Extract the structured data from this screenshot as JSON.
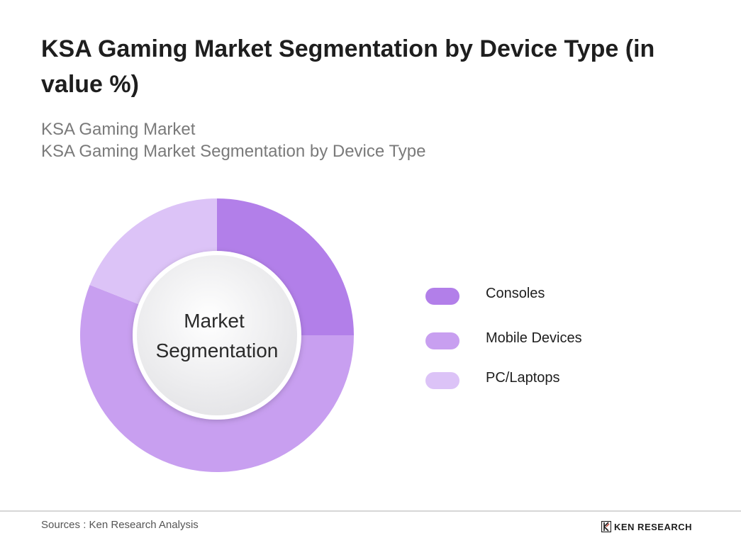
{
  "header": {
    "title": "KSA Gaming Market Segmentation by Device Type (in value %)",
    "subtitle_line1": "KSA Gaming Market",
    "subtitle_line2": "KSA Gaming Market Segmentation by Device Type"
  },
  "chart_data": {
    "type": "pie",
    "variant": "donut",
    "center_label_line1": "Market",
    "center_label_line2": "Segmentation",
    "categories": [
      "Consoles",
      "Mobile Devices",
      "PC/Laptops"
    ],
    "values": [
      25,
      56,
      19
    ],
    "unit": "%",
    "colors": [
      "#b27fe9",
      "#c89ff0",
      "#dcc3f7"
    ],
    "legend_position": "right"
  },
  "legend": {
    "items": [
      {
        "label": "Consoles",
        "color": "#b27fe9"
      },
      {
        "label": "Mobile Devices",
        "color": "#c89ff0"
      },
      {
        "label": "PC/Laptops",
        "color": "#dcc3f7"
      }
    ]
  },
  "footer": {
    "source": "Sources : Ken Research Analysis",
    "brand": "KEN RESEARCH"
  }
}
